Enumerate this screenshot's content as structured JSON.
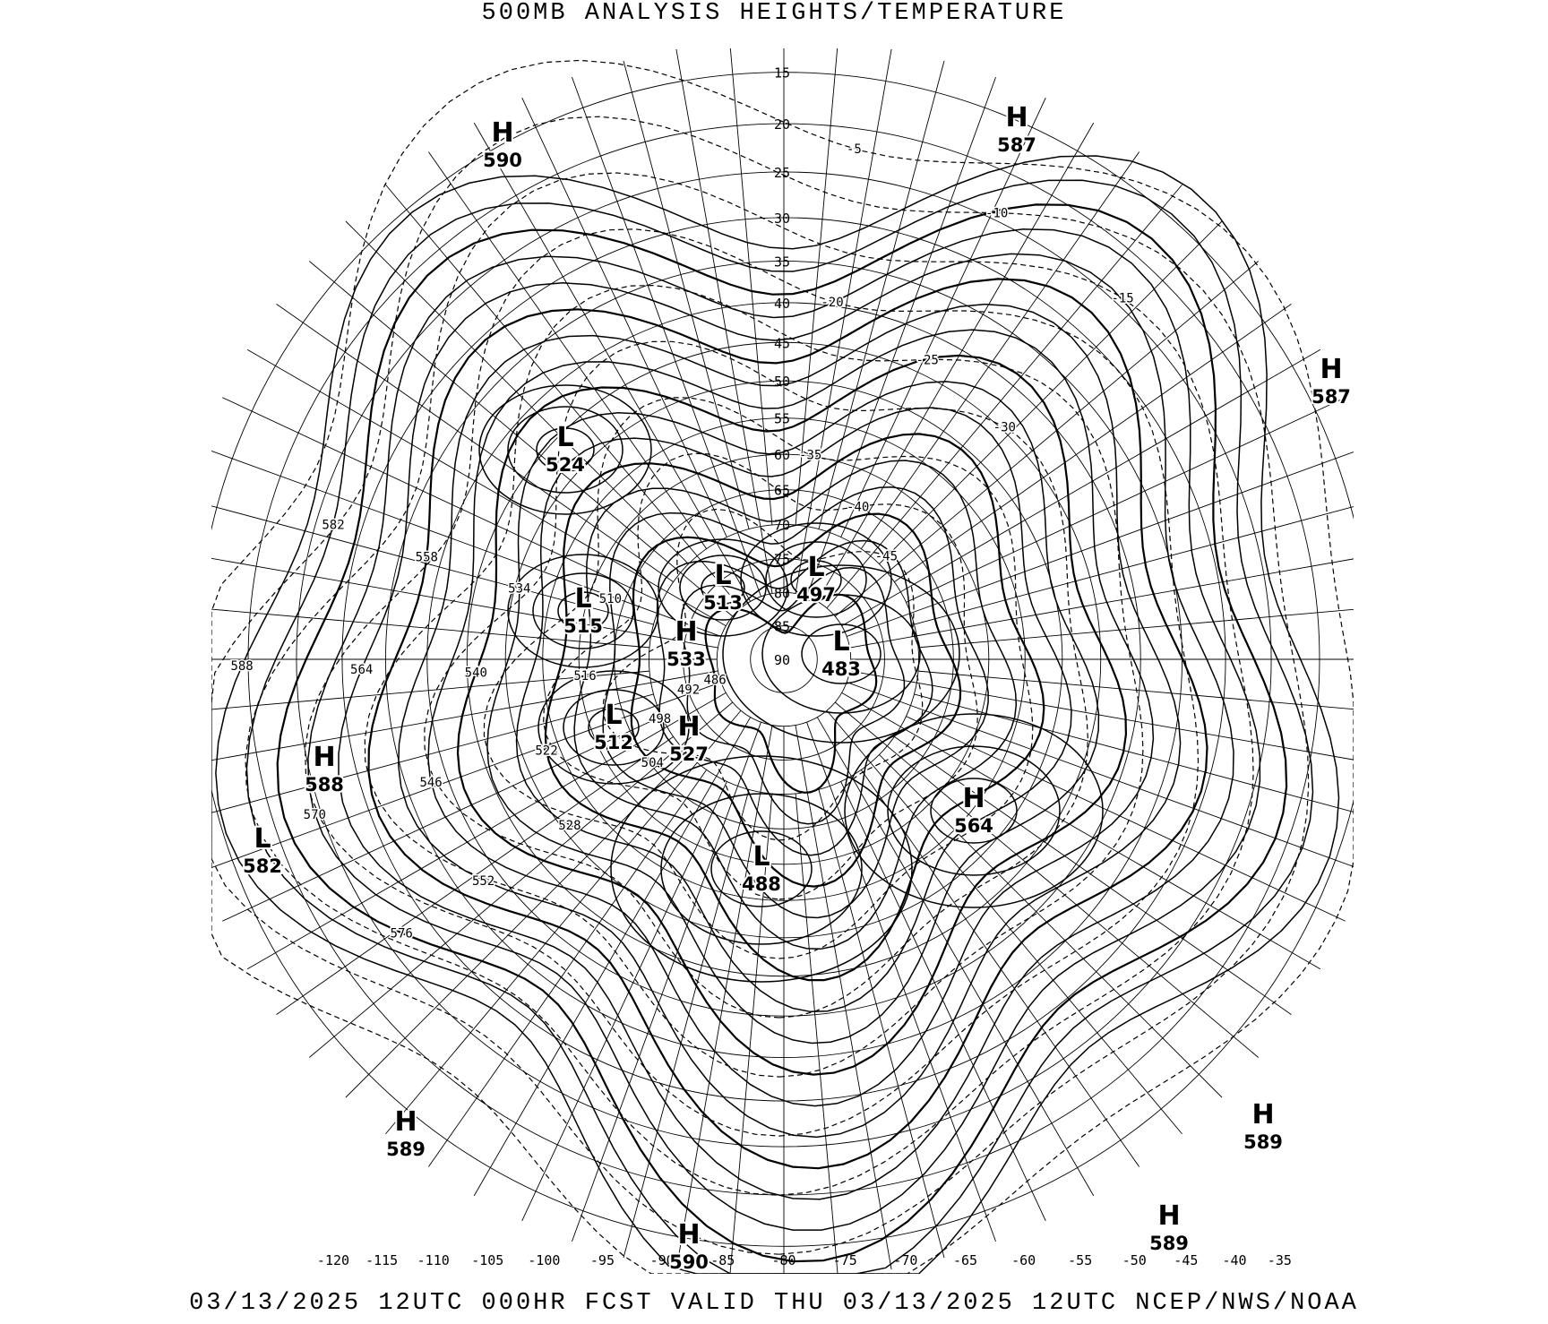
{
  "title": "500MB ANALYSIS  HEIGHTS/TEMPERATURE",
  "footer": "03/13/2025 12UTC 000HR FCST VALID THU 03/13/2025 12UTC  NCEP/NWS/NOAA",
  "map": {
    "projection": "polar stereographic (north pole)",
    "line_color": "#000000",
    "background": "#ffffff",
    "longitude_labels": [
      "-120",
      "-115",
      "-110",
      "-105",
      "-100",
      "-95",
      "-90",
      "-85",
      "-80",
      "-75",
      "-70",
      "-65",
      "-60",
      "-55",
      "-50",
      "-45",
      "-40",
      "-35"
    ],
    "latitude_labels": [
      "15",
      "20",
      "25",
      "30",
      "35",
      "40",
      "45",
      "50",
      "55",
      "60",
      "65",
      "70",
      "75",
      "80",
      "85",
      "90"
    ],
    "height_contours_dam": [
      486,
      492,
      498,
      504,
      510,
      516,
      522,
      528,
      534,
      540,
      546,
      552,
      558,
      564,
      570,
      576,
      582,
      588
    ],
    "temperature_contours_c": [
      -45,
      -40,
      -35,
      -30,
      -25,
      -20,
      -15,
      -10,
      -5
    ],
    "centers": [
      {
        "type": "H",
        "value": "590",
        "lon": -118,
        "lat": 22
      },
      {
        "type": "H",
        "value": "587",
        "lon": -40,
        "lat": 25
      },
      {
        "type": "H",
        "value": "587",
        "lon": -10,
        "lat": 20
      },
      {
        "type": "L",
        "value": "524",
        "lon": -125,
        "lat": 48
      },
      {
        "type": "L",
        "value": "515",
        "lon": -150,
        "lat": 60
      },
      {
        "type": "H",
        "value": "533",
        "lon": -170,
        "lat": 78
      },
      {
        "type": "L",
        "value": "513",
        "lon": -130,
        "lat": 78
      },
      {
        "type": "L",
        "value": "497",
        "lon": -60,
        "lat": 78
      },
      {
        "type": "L",
        "value": "483",
        "lon": -20,
        "lat": 78
      },
      {
        "type": "L",
        "value": "512",
        "lon": 160,
        "lat": 65
      },
      {
        "type": "H",
        "value": "527",
        "lon": 140,
        "lat": 75
      },
      {
        "type": "H",
        "value": "588",
        "lon": 150,
        "lat": 25
      },
      {
        "type": "L",
        "value": "582",
        "lon": 145,
        "lat": 18
      },
      {
        "type": "H",
        "value": "564",
        "lon": 50,
        "lat": 50
      },
      {
        "type": "L",
        "value": "488",
        "lon": 100,
        "lat": 70
      },
      {
        "type": "H",
        "value": "589",
        "lon": -105,
        "lat": 20
      },
      {
        "type": "H",
        "value": "589",
        "lon": -40,
        "lat": 10
      },
      {
        "type": "H",
        "value": "590",
        "lon": -90,
        "lat": 10
      },
      {
        "type": "H",
        "value": "589",
        "lon": -55,
        "lat": 15
      }
    ],
    "contour_labels": [
      "582",
      "576",
      "570",
      "564",
      "558",
      "552",
      "546",
      "540",
      "534",
      "528",
      "522",
      "516",
      "510",
      "504",
      "498",
      "492",
      "-5",
      "-10",
      "-15",
      "-20",
      "-25",
      "-30",
      "-35",
      "-40",
      "-45",
      "588"
    ]
  }
}
